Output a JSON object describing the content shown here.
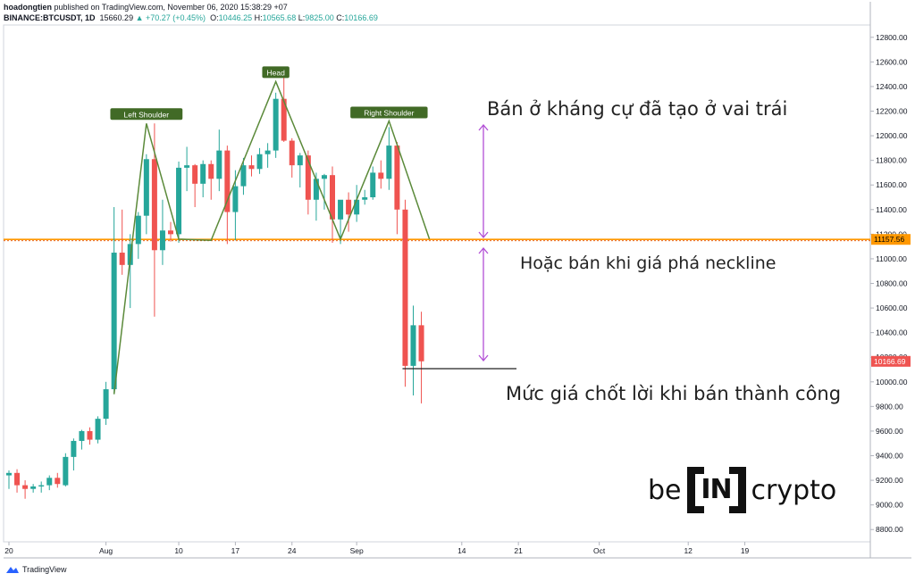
{
  "header": {
    "user": "hoadongtien",
    "published": "published on TradingView.com, November 06, 2020 15:38:29 +07",
    "symbol": "BINANCE:BTCUSDT, 1D",
    "price": "15660.29",
    "change": "▲ +70.27 (+0.45%)",
    "ohlc_o_label": "O:",
    "ohlc_o": "10446.25",
    "ohlc_h_label": "H:",
    "ohlc_h": "10565.68",
    "ohlc_l_label": "L:",
    "ohlc_l": "9825.00",
    "ohlc_c_label": "C:",
    "ohlc_c": "10166.69"
  },
  "annotations": {
    "sell_left_shoulder": "Bán ở kháng cự đã tạo ở vai trái",
    "sell_neckline": "Hoặc bán khi giá phá neckline",
    "take_profit": "Mức giá chốt lời khi bán thành công"
  },
  "pattern_labels": {
    "left": "Left Shoulder",
    "head": "Head",
    "right": "Right Shoulder"
  },
  "logo": {
    "left": "be",
    "mid": "IN",
    "right": "crypto"
  },
  "footer": {
    "brand": "TradingView"
  },
  "colors": {
    "up": "#26a69a",
    "down": "#ef5350",
    "neckline": "#ff9800",
    "pattern": "#5b8a3a",
    "arrow": "#b24fd6"
  },
  "chart_data": {
    "type": "candlestick",
    "y_ticks": [
      8800,
      9000,
      9200,
      9400,
      9600,
      9800,
      10000,
      10200,
      10400,
      10600,
      10800,
      11000,
      11200,
      11400,
      11600,
      11800,
      12000,
      12200,
      12400,
      12600,
      12800
    ],
    "ylim": [
      8700,
      12900
    ],
    "x_ticks": [
      {
        "label": "20",
        "day": 0
      },
      {
        "label": "Aug",
        "day": 12
      },
      {
        "label": "10",
        "day": 21
      },
      {
        "label": "17",
        "day": 28
      },
      {
        "label": "24",
        "day": 35
      },
      {
        "label": "Sep",
        "day": 43
      },
      {
        "label": "14",
        "day": 56
      },
      {
        "label": "21",
        "day": 63
      },
      {
        "label": "Oct",
        "day": 73
      },
      {
        "label": "12",
        "day": 84
      },
      {
        "label": "19",
        "day": 91
      }
    ],
    "neckline": 11157.56,
    "neckline_label": "11157.56",
    "last_price": 10166.69,
    "last_price_label": "10166.69",
    "candles": [
      {
        "o": 9240,
        "h": 9280,
        "l": 9130,
        "c": 9260
      },
      {
        "o": 9260,
        "h": 9290,
        "l": 9100,
        "c": 9160
      },
      {
        "o": 9160,
        "h": 9200,
        "l": 9050,
        "c": 9130
      },
      {
        "o": 9130,
        "h": 9170,
        "l": 9100,
        "c": 9150
      },
      {
        "o": 9150,
        "h": 9190,
        "l": 9100,
        "c": 9160
      },
      {
        "o": 9160,
        "h": 9240,
        "l": 9120,
        "c": 9220
      },
      {
        "o": 9220,
        "h": 9260,
        "l": 9140,
        "c": 9170
      },
      {
        "o": 9160,
        "h": 9420,
        "l": 9150,
        "c": 9390
      },
      {
        "o": 9390,
        "h": 9540,
        "l": 9280,
        "c": 9520
      },
      {
        "o": 9520,
        "h": 9610,
        "l": 9450,
        "c": 9600
      },
      {
        "o": 9600,
        "h": 9630,
        "l": 9490,
        "c": 9530
      },
      {
        "o": 9530,
        "h": 9720,
        "l": 9500,
        "c": 9700
      },
      {
        "o": 9700,
        "h": 10000,
        "l": 9650,
        "c": 9940
      },
      {
        "o": 9940,
        "h": 11420,
        "l": 9900,
        "c": 11050
      },
      {
        "o": 11050,
        "h": 11400,
        "l": 10870,
        "c": 10950
      },
      {
        "o": 10950,
        "h": 11200,
        "l": 10600,
        "c": 11120
      },
      {
        "o": 11120,
        "h": 11380,
        "l": 11000,
        "c": 11350
      },
      {
        "o": 11350,
        "h": 11850,
        "l": 11200,
        "c": 11810
      },
      {
        "o": 11810,
        "h": 12100,
        "l": 10530,
        "c": 11070
      },
      {
        "o": 11070,
        "h": 11480,
        "l": 10950,
        "c": 11230
      },
      {
        "o": 11230,
        "h": 11300,
        "l": 11140,
        "c": 11200
      },
      {
        "o": 11200,
        "h": 11790,
        "l": 11130,
        "c": 11740
      },
      {
        "o": 11740,
        "h": 11910,
        "l": 11550,
        "c": 11760
      },
      {
        "o": 11760,
        "h": 11770,
        "l": 11420,
        "c": 11610
      },
      {
        "o": 11610,
        "h": 11800,
        "l": 11500,
        "c": 11770
      },
      {
        "o": 11770,
        "h": 11800,
        "l": 11480,
        "c": 11650
      },
      {
        "o": 11650,
        "h": 12050,
        "l": 11550,
        "c": 11880
      },
      {
        "o": 11880,
        "h": 11920,
        "l": 11120,
        "c": 11380
      },
      {
        "o": 11380,
        "h": 11720,
        "l": 11150,
        "c": 11590
      },
      {
        "o": 11590,
        "h": 11820,
        "l": 11520,
        "c": 11760
      },
      {
        "o": 11760,
        "h": 11840,
        "l": 11670,
        "c": 11730
      },
      {
        "o": 11730,
        "h": 11900,
        "l": 11690,
        "c": 11850
      },
      {
        "o": 11850,
        "h": 11940,
        "l": 11740,
        "c": 11880
      },
      {
        "o": 11880,
        "h": 12350,
        "l": 11820,
        "c": 12300
      },
      {
        "o": 12300,
        "h": 12480,
        "l": 11950,
        "c": 11960
      },
      {
        "o": 11960,
        "h": 11980,
        "l": 11660,
        "c": 11760
      },
      {
        "o": 11760,
        "h": 11860,
        "l": 11580,
        "c": 11840
      },
      {
        "o": 11840,
        "h": 11880,
        "l": 11360,
        "c": 11480
      },
      {
        "o": 11480,
        "h": 11700,
        "l": 11310,
        "c": 11650
      },
      {
        "o": 11650,
        "h": 11690,
        "l": 11400,
        "c": 11680
      },
      {
        "o": 11680,
        "h": 11750,
        "l": 11130,
        "c": 11320
      },
      {
        "o": 11320,
        "h": 11460,
        "l": 11120,
        "c": 11480
      },
      {
        "o": 11480,
        "h": 11540,
        "l": 11220,
        "c": 11360
      },
      {
        "o": 11360,
        "h": 11600,
        "l": 11300,
        "c": 11480
      },
      {
        "o": 11480,
        "h": 11560,
        "l": 11440,
        "c": 11500
      },
      {
        "o": 11500,
        "h": 11750,
        "l": 11480,
        "c": 11700
      },
      {
        "o": 11700,
        "h": 11800,
        "l": 11570,
        "c": 11650
      },
      {
        "o": 11650,
        "h": 12070,
        "l": 11560,
        "c": 11920
      },
      {
        "o": 11920,
        "h": 11950,
        "l": 11200,
        "c": 11400
      },
      {
        "o": 11400,
        "h": 11480,
        "l": 9960,
        "c": 10130
      },
      {
        "o": 10130,
        "h": 10620,
        "l": 9890,
        "c": 10460
      },
      {
        "o": 10460,
        "h": 10570,
        "l": 9825,
        "c": 10167
      }
    ],
    "pattern_points": [
      {
        "day": 13,
        "value": 9900
      },
      {
        "day": 17,
        "value": 12100
      },
      {
        "day": 21,
        "value": 11160
      },
      {
        "day": 25,
        "value": 11150
      },
      {
        "day": 33,
        "value": 12440
      },
      {
        "day": 41,
        "value": 11160
      },
      {
        "day": 47,
        "value": 12120
      },
      {
        "day": 52,
        "value": 11160
      }
    ]
  }
}
